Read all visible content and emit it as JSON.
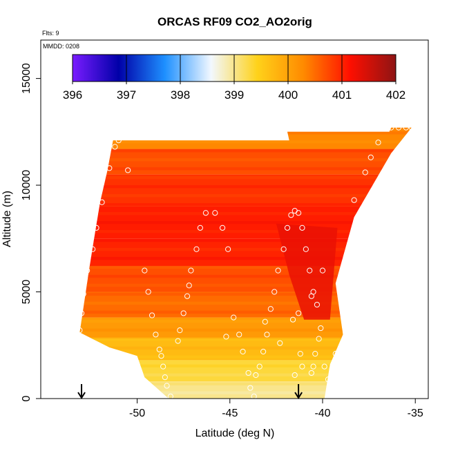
{
  "chart_data": {
    "type": "heatmap",
    "title": "ORCAS RF09 CO2_AO2orig",
    "subtitle_flights": "Flts: 9",
    "subtitle_date": "MMDD: 0208",
    "xlabel": "Latitude (deg N)",
    "ylabel": "Altitude (m)",
    "xlim": [
      -55.2,
      -34.3
    ],
    "ylim": [
      0,
      16800
    ],
    "x_ticks": [
      -50,
      -45,
      -40,
      -35
    ],
    "x_tick_labels": [
      "-50",
      "-45",
      "-40",
      "-35"
    ],
    "y_ticks": [
      0,
      5000,
      10000,
      15000
    ],
    "y_tick_labels": [
      "0",
      "5000",
      "10000",
      "15000"
    ],
    "colorbar": {
      "min": 396,
      "max": 402,
      "ticks": [
        396,
        397,
        398,
        399,
        400,
        401,
        402
      ],
      "tick_labels": [
        "396",
        "397",
        "398",
        "399",
        "400",
        "401",
        "402"
      ],
      "colors": [
        "#7a1cff",
        "#0000a8",
        "#1e90ff",
        "#f2f8ff",
        "#ffd21a",
        "#ff8a00",
        "#ff0f00",
        "#8e1414"
      ]
    },
    "curtain_outline_lat_alt": [
      [
        -53.1,
        3100
      ],
      [
        -52.6,
        6000
      ],
      [
        -52.4,
        7100
      ],
      [
        -52.0,
        9200
      ],
      [
        -51.6,
        10700
      ],
      [
        -51.3,
        12100
      ],
      [
        -47.0,
        12100
      ],
      [
        -44.0,
        12100
      ],
      [
        -41.8,
        12100
      ],
      [
        -41.9,
        12500
      ],
      [
        -36.4,
        12500
      ],
      [
        -36.3,
        12700
      ],
      [
        -35.2,
        12700
      ],
      [
        -36.3,
        11500
      ],
      [
        -38.3,
        8500
      ],
      [
        -39.3,
        5400
      ],
      [
        -38.9,
        3000
      ],
      [
        -39.6,
        1600
      ],
      [
        -39.9,
        0
      ],
      [
        -48.3,
        0
      ],
      [
        -49.6,
        1000
      ],
      [
        -50.0,
        2000
      ],
      [
        -51.5,
        2400
      ]
    ],
    "curtain_band_values": [
      {
        "alt_min": 0,
        "alt_max": 800,
        "value": 399.0
      },
      {
        "alt_min": 800,
        "alt_max": 1800,
        "value": 399.3
      },
      {
        "alt_min": 1800,
        "alt_max": 2800,
        "value": 399.7
      },
      {
        "alt_min": 2800,
        "alt_max": 3800,
        "value": 400.1
      },
      {
        "alt_min": 3800,
        "alt_max": 5000,
        "value": 400.5
      },
      {
        "alt_min": 5000,
        "alt_max": 6200,
        "value": 400.7
      },
      {
        "alt_min": 6200,
        "alt_max": 7500,
        "value": 401.0
      },
      {
        "alt_min": 7500,
        "alt_max": 9000,
        "value": 401.05
      },
      {
        "alt_min": 9000,
        "alt_max": 10500,
        "value": 400.9
      },
      {
        "alt_min": 10500,
        "alt_max": 11700,
        "value": 400.7
      },
      {
        "alt_min": 11700,
        "alt_max": 12800,
        "value": 400.3
      }
    ],
    "high_anomaly_region_lat_alt": [
      [
        -42.5,
        8200
      ],
      [
        -39.2,
        8000
      ],
      [
        -39.6,
        3700
      ],
      [
        -41.0,
        3700
      ],
      [
        -41.8,
        5800
      ]
    ],
    "high_anomaly_value": 401.3,
    "observations": [
      [
        -51.0,
        12100
      ],
      [
        -51.2,
        11800
      ],
      [
        -51.5,
        10800
      ],
      [
        -50.5,
        10700
      ],
      [
        -51.9,
        9200
      ],
      [
        -52.2,
        8000
      ],
      [
        -52.4,
        7000
      ],
      [
        -52.7,
        6000
      ],
      [
        -52.9,
        4900
      ],
      [
        -53.0,
        4000
      ],
      [
        -53.1,
        3200
      ],
      [
        -49.6,
        6000
      ],
      [
        -49.4,
        5000
      ],
      [
        -49.2,
        3900
      ],
      [
        -49.0,
        3000
      ],
      [
        -48.8,
        2300
      ],
      [
        -48.7,
        2000
      ],
      [
        -48.6,
        1500
      ],
      [
        -48.5,
        1000
      ],
      [
        -48.4,
        600
      ],
      [
        -48.2,
        100
      ],
      [
        -47.8,
        2700
      ],
      [
        -47.7,
        3200
      ],
      [
        -47.5,
        4000
      ],
      [
        -47.3,
        4800
      ],
      [
        -47.2,
        5300
      ],
      [
        -47.1,
        6000
      ],
      [
        -46.8,
        7000
      ],
      [
        -46.6,
        8000
      ],
      [
        -46.3,
        8700
      ],
      [
        -45.8,
        8700
      ],
      [
        -45.4,
        8000
      ],
      [
        -45.1,
        7000
      ],
      [
        -44.5,
        3000
      ],
      [
        -44.3,
        2200
      ],
      [
        -44.0,
        1200
      ],
      [
        -43.9,
        500
      ],
      [
        -43.7,
        100
      ],
      [
        -43.6,
        1100
      ],
      [
        -43.4,
        1500
      ],
      [
        -43.2,
        2200
      ],
      [
        -43.0,
        3000
      ],
      [
        -42.8,
        4200
      ],
      [
        -42.6,
        5000
      ],
      [
        -42.4,
        6000
      ],
      [
        -42.1,
        7000
      ],
      [
        -41.9,
        8000
      ],
      [
        -41.7,
        8600
      ],
      [
        -41.5,
        8800
      ],
      [
        -41.3,
        8700
      ],
      [
        -41.1,
        8000
      ],
      [
        -40.9,
        7000
      ],
      [
        -40.7,
        6000
      ],
      [
        -40.5,
        5000
      ],
      [
        -40.3,
        4400
      ],
      [
        -40.1,
        3300
      ],
      [
        -40.2,
        2800
      ],
      [
        -40.4,
        2100
      ],
      [
        -40.5,
        1500
      ],
      [
        -40.6,
        1200
      ],
      [
        -39.9,
        1500
      ],
      [
        -39.7,
        900
      ],
      [
        -39.6,
        400
      ],
      [
        -39.3,
        2100
      ],
      [
        -39.0,
        1500
      ],
      [
        -40.6,
        4800
      ],
      [
        -40.0,
        6000
      ],
      [
        -38.3,
        9300
      ],
      [
        -37.7,
        10600
      ],
      [
        -37.4,
        11300
      ],
      [
        -37.0,
        12000
      ],
      [
        -36.3,
        12700
      ],
      [
        -35.9,
        12700
      ],
      [
        -35.5,
        12700
      ],
      [
        -35.2,
        12700
      ],
      [
        -41.6,
        3700
      ],
      [
        -41.3,
        4000
      ],
      [
        -41.2,
        2100
      ],
      [
        -41.1,
        1500
      ],
      [
        -41.5,
        1100
      ],
      [
        -44.8,
        3800
      ],
      [
        -45.2,
        2900
      ],
      [
        -43.1,
        3600
      ],
      [
        -42.3,
        2600
      ]
    ],
    "arrows_at_surface_lat": [
      -53.0,
      -41.3
    ]
  }
}
